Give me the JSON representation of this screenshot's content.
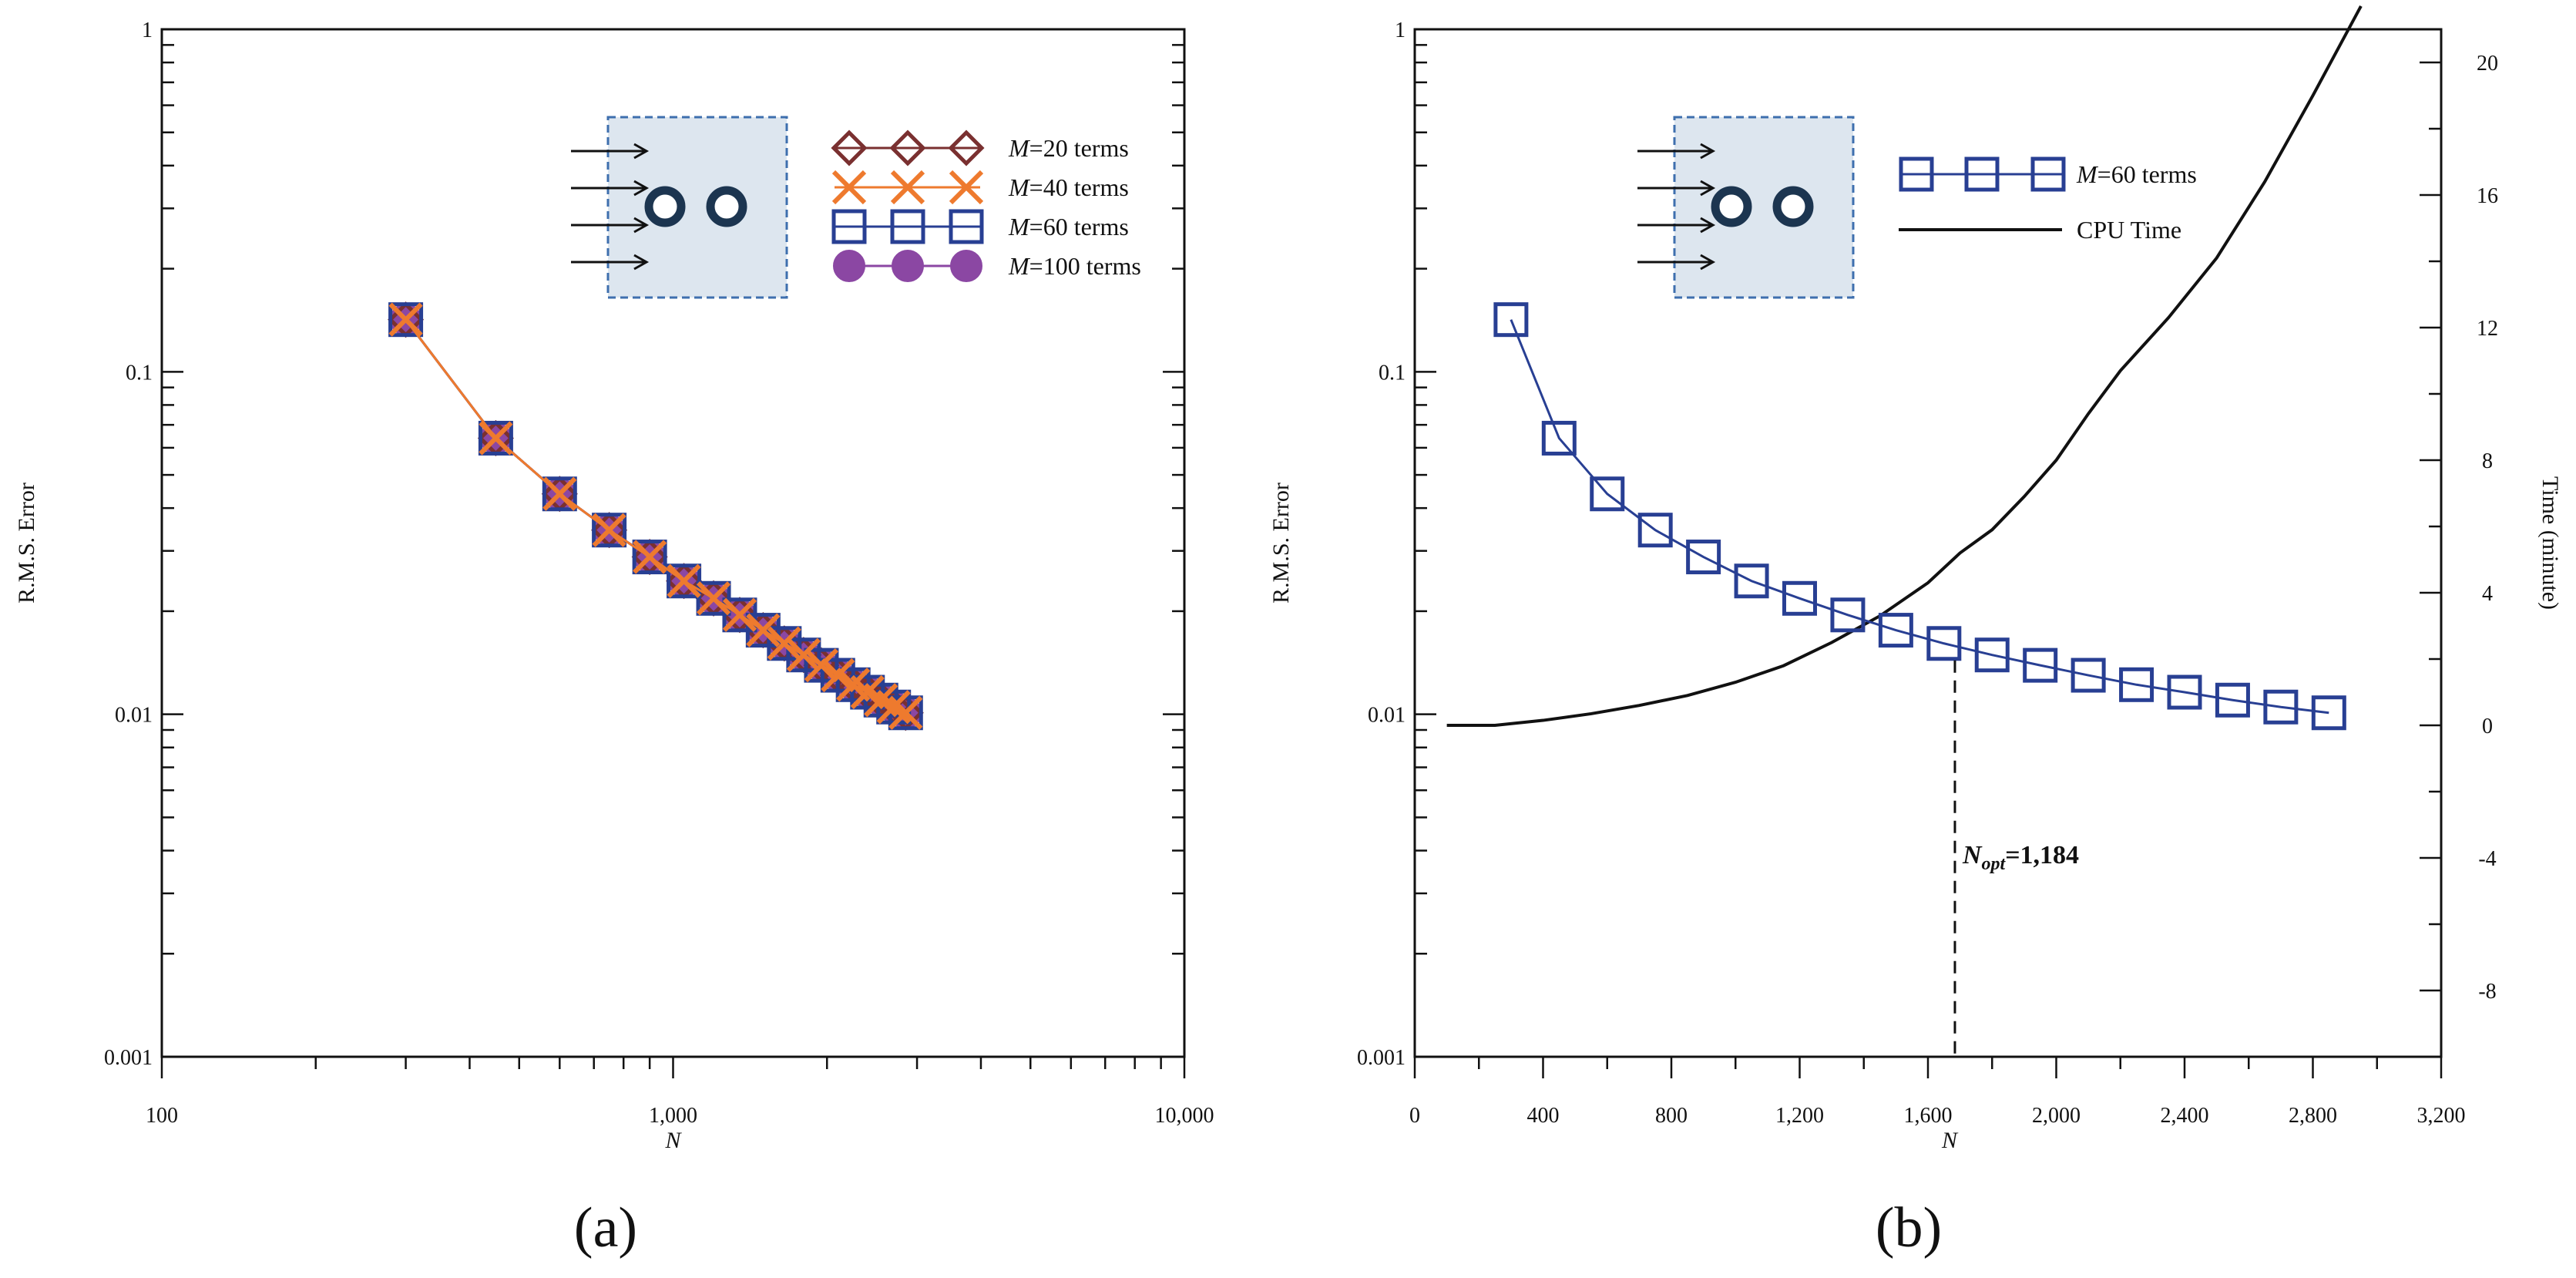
{
  "figure": {
    "panel_labels": [
      "(a)",
      "(b)"
    ]
  },
  "colors": {
    "m20": "#7a3030",
    "m40": "#ee7a2e",
    "m60": "#283f93",
    "m100": "#8b47a3",
    "cpu": "#111111",
    "inset_fill": "#dde6ef",
    "inset_border": "#3e6fae",
    "cylinder": "#1c3550"
  },
  "chart_data": [
    {
      "id": "a",
      "type": "line",
      "panel_label": "(a)",
      "xscale": "log",
      "yscale": "log",
      "xlim": [
        100,
        10000
      ],
      "ylim": [
        0.001,
        1
      ],
      "xlabel": "N",
      "ylabel": "R.M.S. Error",
      "x_tick_labels": [
        "100",
        "1,000",
        "10,000"
      ],
      "y_tick_labels": [
        "0.001",
        "0.01",
        "0.1",
        "1"
      ],
      "legend_position": "top-right",
      "x": [
        300,
        450,
        600,
        750,
        900,
        1050,
        1200,
        1350,
        1500,
        1650,
        1800,
        1950,
        2100,
        2250,
        2400,
        2550,
        2700,
        2850
      ],
      "series": [
        {
          "name": "M=20 terms",
          "legend_var": "M",
          "legend_rest": "=20 terms",
          "marker": "diamond",
          "values": [
            0.142,
            0.064,
            0.044,
            0.0345,
            0.0288,
            0.0245,
            0.0218,
            0.0195,
            0.0176,
            0.0161,
            0.0149,
            0.0139,
            0.013,
            0.0122,
            0.0116,
            0.011,
            0.0105,
            0.0101
          ]
        },
        {
          "name": "M=40 terms",
          "legend_var": "M",
          "legend_rest": "=40 terms",
          "marker": "x",
          "values": [
            0.142,
            0.064,
            0.044,
            0.0345,
            0.0288,
            0.0245,
            0.0218,
            0.0195,
            0.0176,
            0.0161,
            0.0149,
            0.0139,
            0.013,
            0.0122,
            0.0116,
            0.011,
            0.0105,
            0.0101
          ]
        },
        {
          "name": "M=60 terms",
          "legend_var": "M",
          "legend_rest": "=60 terms",
          "marker": "square",
          "values": [
            0.142,
            0.064,
            0.044,
            0.0345,
            0.0288,
            0.0245,
            0.0218,
            0.0195,
            0.0176,
            0.0161,
            0.0149,
            0.0139,
            0.013,
            0.0122,
            0.0116,
            0.011,
            0.0105,
            0.0101
          ]
        },
        {
          "name": "M=100 terms",
          "legend_var": "M",
          "legend_rest": "=100 terms",
          "marker": "circle",
          "values": [
            0.142,
            0.064,
            0.044,
            0.0345,
            0.0288,
            0.0245,
            0.0218,
            0.0195,
            0.0176,
            0.0161,
            0.0149,
            0.0139,
            0.013,
            0.0122,
            0.0116,
            0.011,
            0.0105,
            0.0101
          ]
        }
      ]
    },
    {
      "id": "b",
      "type": "line",
      "panel_label": "(b)",
      "xscale": "linear",
      "yscale": "log",
      "xlim": [
        0,
        3200
      ],
      "ylim": [
        0.001,
        1
      ],
      "y2lim": [
        -10,
        21
      ],
      "xlabel": "N",
      "ylabel": "R.M.S. Error",
      "y2label": "Time (minute)",
      "x_ticks": [
        0,
        400,
        800,
        1200,
        1600,
        2000,
        2400,
        2800,
        3200
      ],
      "x_tick_labels": [
        "0",
        "400",
        "800",
        "1,200",
        "1,600",
        "2,000",
        "2,400",
        "2,800",
        "3,200"
      ],
      "y_tick_labels": [
        "0.001",
        "0.01",
        "0.1",
        "1"
      ],
      "y2_ticks": [
        -8,
        -4,
        0,
        4,
        8,
        12,
        16,
        20
      ],
      "y2_tick_labels": [
        "-8",
        "-4",
        "0",
        "4",
        "8",
        "12",
        "16",
        "20"
      ],
      "legend_position": "top-center",
      "series": [
        {
          "name": "M=60 terms",
          "legend_var": "M",
          "legend_rest": "=60 terms",
          "marker": "square",
          "axis": "left",
          "x": [
            300,
            450,
            600,
            750,
            900,
            1050,
            1200,
            1350,
            1500,
            1650,
            1800,
            1950,
            2100,
            2250,
            2400,
            2550,
            2700,
            2850
          ],
          "values": [
            0.142,
            0.064,
            0.044,
            0.0345,
            0.0288,
            0.0245,
            0.0218,
            0.0195,
            0.0176,
            0.0161,
            0.0149,
            0.0139,
            0.013,
            0.0122,
            0.0116,
            0.011,
            0.0105,
            0.0101
          ]
        },
        {
          "name": "CPU Time",
          "marker": "none",
          "axis": "right",
          "x": [
            100,
            250,
            400,
            550,
            700,
            850,
            1000,
            1150,
            1300,
            1450,
            1600,
            1700,
            1800,
            1900,
            2000,
            2100,
            2200,
            2350,
            2500,
            2650,
            2800,
            2950
          ],
          "values": [
            0,
            0,
            0.15,
            0.35,
            0.6,
            0.9,
            1.3,
            1.8,
            2.5,
            3.3,
            4.3,
            5.2,
            5.9,
            6.9,
            8.0,
            9.4,
            10.7,
            12.3,
            14.1,
            16.4,
            19.0,
            21.7
          ]
        }
      ],
      "annotation": {
        "x": 1684,
        "label_main": "N",
        "label_sub": "opt",
        "label_value": "=1,184"
      }
    }
  ]
}
